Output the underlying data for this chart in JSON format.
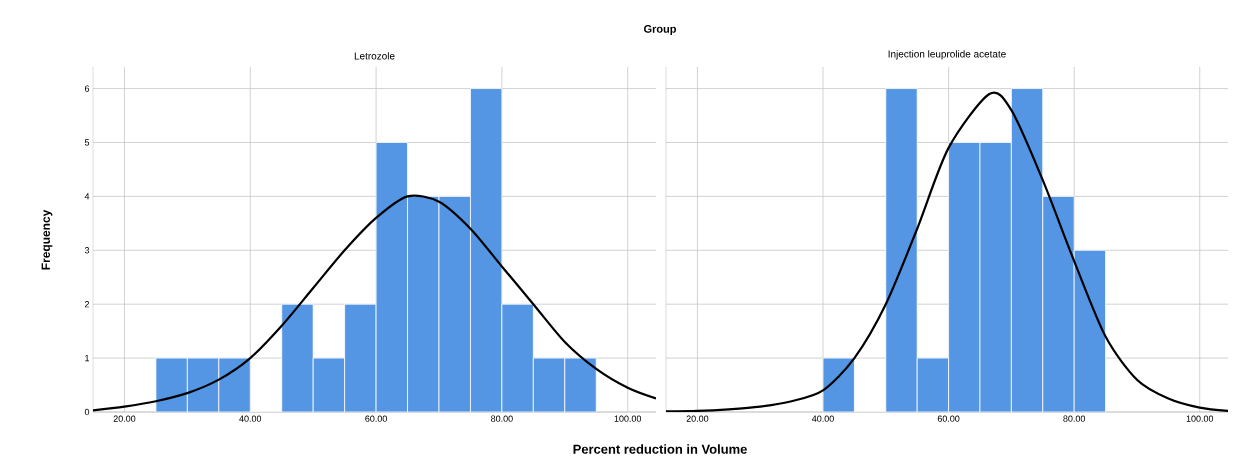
{
  "chart_data": [
    {
      "type": "histogram",
      "title": "Letrozole",
      "annotations": [
        "Group"
      ],
      "xlabel": "Percent reduction in Volume",
      "ylabel": "Frequency",
      "grid": true,
      "xlim": [
        15,
        104.5
      ],
      "ylim": [
        0,
        6.4
      ],
      "xticks": [
        {
          "value": 20,
          "label": "20.00"
        },
        {
          "value": 40,
          "label": "40.00"
        },
        {
          "value": 60,
          "label": "60.00"
        },
        {
          "value": 80,
          "label": "80.00"
        },
        {
          "value": 100,
          "label": "100.00"
        }
      ],
      "yticks": [
        0,
        1,
        2,
        3,
        4,
        5,
        6
      ],
      "series": [
        {
          "type": "histogram",
          "color": "#5596e4",
          "bins": [
            25,
            30,
            35,
            40,
            45,
            50,
            55,
            60,
            65,
            70,
            75,
            80,
            85,
            90,
            95
          ],
          "values": [
            1,
            1,
            1,
            0,
            2,
            1,
            2,
            5,
            4,
            4,
            6,
            2,
            1,
            1
          ]
        },
        {
          "type": "line",
          "color": "#000000",
          "x": [
            15,
            20,
            25,
            30,
            35,
            40,
            45,
            50,
            55,
            60,
            65,
            70,
            75,
            80,
            85,
            90,
            95,
            100,
            104.5
          ],
          "values": [
            0.03,
            0.1,
            0.2,
            0.35,
            0.6,
            1.0,
            1.6,
            2.3,
            3.0,
            3.6,
            4.0,
            3.9,
            3.4,
            2.7,
            2.0,
            1.3,
            0.8,
            0.45,
            0.25
          ]
        }
      ]
    },
    {
      "type": "histogram",
      "title": "Injection leuprolide acetate",
      "grid": true,
      "tick_labels": "x",
      "xlim": [
        15,
        104.5
      ],
      "ylim": [
        0,
        6.4
      ],
      "xticks": [
        {
          "value": 20,
          "label": "20.00"
        },
        {
          "value": 40,
          "label": "40.00"
        },
        {
          "value": 60,
          "label": "60.00"
        },
        {
          "value": 80,
          "label": "80.00"
        },
        {
          "value": 100,
          "label": "100.00"
        }
      ],
      "yticks": [
        0,
        1,
        2,
        3,
        4,
        5,
        6
      ],
      "series": [
        {
          "type": "histogram",
          "color": "#5596e4",
          "bins": [
            40,
            45,
            50,
            55,
            60,
            65,
            70,
            75,
            80,
            85
          ],
          "values": [
            1,
            0,
            6,
            1,
            5,
            5,
            6,
            4,
            3
          ]
        },
        {
          "type": "line",
          "color": "#000000",
          "x": [
            15,
            20,
            25,
            30,
            35,
            40,
            45,
            50,
            55,
            60,
            66.5,
            70,
            75,
            80,
            85,
            90,
            95,
            100,
            104.5
          ],
          "values": [
            0.01,
            0.02,
            0.05,
            0.1,
            0.2,
            0.4,
            1.0,
            2.0,
            3.4,
            4.9,
            5.9,
            5.6,
            4.3,
            2.8,
            1.4,
            0.6,
            0.25,
            0.08,
            0.02
          ]
        }
      ]
    }
  ]
}
